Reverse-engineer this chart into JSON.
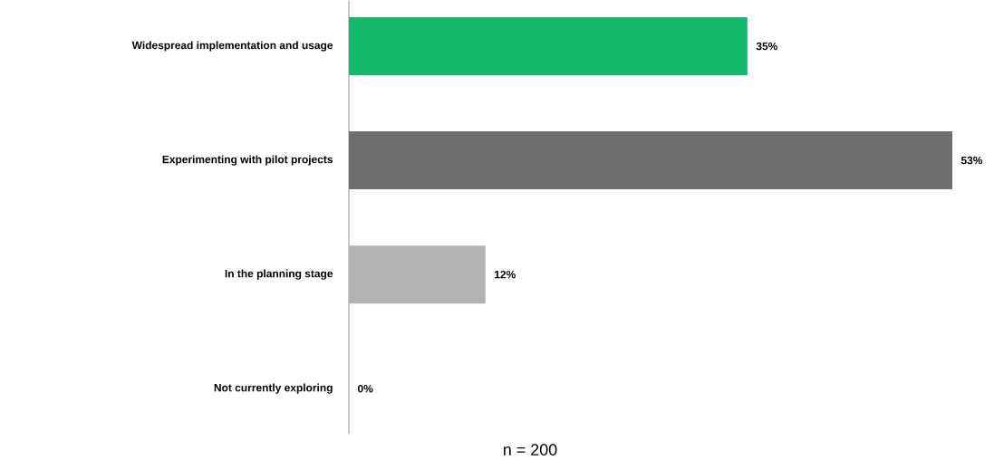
{
  "chart_data": {
    "type": "bar",
    "orientation": "horizontal",
    "tick_labels": "y",
    "categories": [
      "Widespread implementation and usage",
      "Experimenting with pilot projects",
      "In the planning stage",
      "Not currently exploring"
    ],
    "values": [
      35,
      53,
      12,
      0
    ],
    "colors": [
      "#13b86b",
      "#6e6e6e",
      "#b3b3b3",
      "#b3b3b3"
    ],
    "value_labels": [
      "35%",
      "53%",
      "12%",
      "0%"
    ],
    "annotations": [
      "n = 200"
    ]
  }
}
